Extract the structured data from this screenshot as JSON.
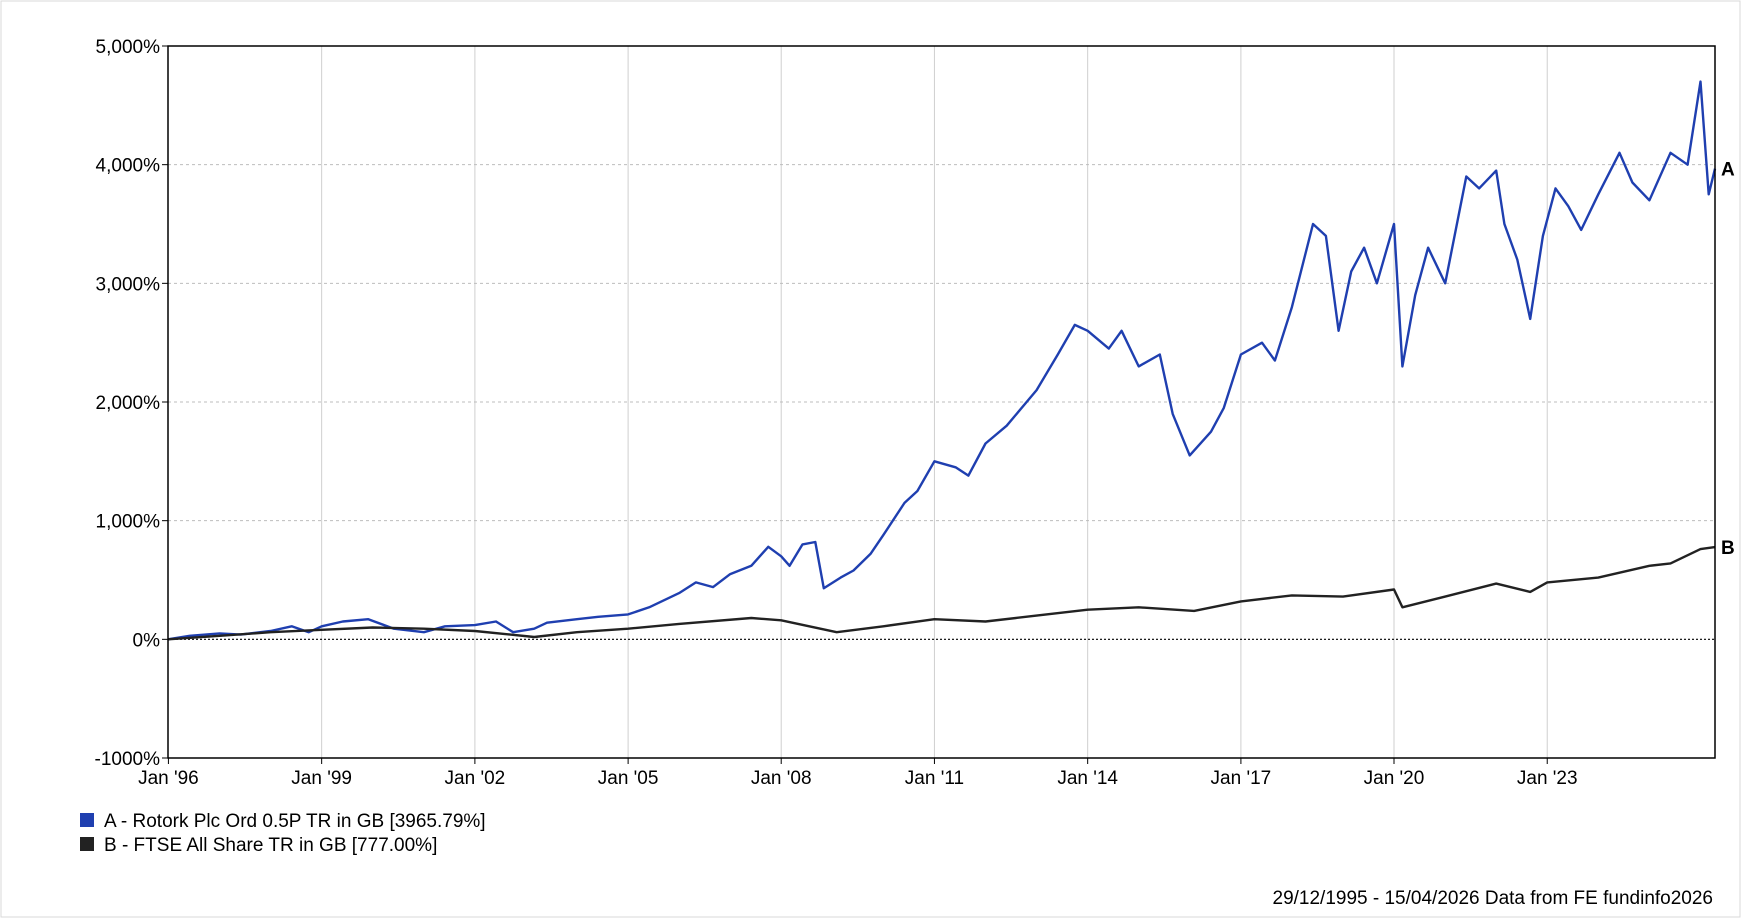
{
  "chart_data": {
    "type": "line",
    "x_range": [
      "1995-12-29",
      "2026-04-15"
    ],
    "ylim": [
      -1000,
      5000
    ],
    "yticks": [
      5000,
      4000,
      3000,
      2000,
      1000,
      0,
      -1000
    ],
    "ytick_labels": [
      "5,000%",
      "4,000%",
      "3,000%",
      "2,000%",
      "1,000%",
      "0%",
      "-1000%"
    ],
    "xticks": [
      "1996-01-01",
      "1999-01-01",
      "2002-01-01",
      "2005-01-01",
      "2008-01-01",
      "2011-01-01",
      "2014-01-01",
      "2017-01-01",
      "2020-01-01",
      "2023-01-01"
    ],
    "xtick_labels": [
      "Jan '96",
      "Jan '99",
      "Jan '02",
      "Jan '05",
      "Jan '08",
      "Jan '11",
      "Jan '14",
      "Jan '17",
      "Jan '20",
      "Jan '23"
    ],
    "grid": true,
    "series": [
      {
        "name": "A - Rotork Plc Ord 0.5P TR in GB [3965.79%]",
        "end_label": "A",
        "color": "#1f3fb0",
        "points": [
          [
            "1995-12-29",
            0
          ],
          [
            "1996-06-01",
            30
          ],
          [
            "1997-01-01",
            50
          ],
          [
            "1997-06-01",
            40
          ],
          [
            "1998-01-01",
            70
          ],
          [
            "1998-06-01",
            110
          ],
          [
            "1998-10-01",
            60
          ],
          [
            "1999-01-01",
            110
          ],
          [
            "1999-06-01",
            150
          ],
          [
            "1999-12-01",
            170
          ],
          [
            "2000-06-01",
            90
          ],
          [
            "2001-01-01",
            60
          ],
          [
            "2001-06-01",
            110
          ],
          [
            "2002-01-01",
            120
          ],
          [
            "2002-06-01",
            150
          ],
          [
            "2002-10-01",
            60
          ],
          [
            "2003-03-01",
            90
          ],
          [
            "2003-06-01",
            140
          ],
          [
            "2004-01-01",
            170
          ],
          [
            "2004-06-01",
            190
          ],
          [
            "2005-01-01",
            210
          ],
          [
            "2005-06-01",
            270
          ],
          [
            "2006-01-01",
            390
          ],
          [
            "2006-05-01",
            480
          ],
          [
            "2006-09-01",
            440
          ],
          [
            "2007-01-01",
            550
          ],
          [
            "2007-06-01",
            620
          ],
          [
            "2007-10-01",
            780
          ],
          [
            "2008-01-01",
            700
          ],
          [
            "2008-03-01",
            620
          ],
          [
            "2008-06-01",
            800
          ],
          [
            "2008-09-01",
            820
          ],
          [
            "2008-11-01",
            430
          ],
          [
            "2009-03-01",
            520
          ],
          [
            "2009-06-01",
            580
          ],
          [
            "2009-10-01",
            720
          ],
          [
            "2010-01-01",
            880
          ],
          [
            "2010-06-01",
            1150
          ],
          [
            "2010-09-01",
            1250
          ],
          [
            "2011-01-01",
            1500
          ],
          [
            "2011-06-01",
            1450
          ],
          [
            "2011-09-01",
            1380
          ],
          [
            "2012-01-01",
            1650
          ],
          [
            "2012-06-01",
            1800
          ],
          [
            "2013-01-01",
            2100
          ],
          [
            "2013-06-01",
            2400
          ],
          [
            "2013-10-01",
            2650
          ],
          [
            "2014-01-01",
            2600
          ],
          [
            "2014-06-01",
            2450
          ],
          [
            "2014-09-01",
            2600
          ],
          [
            "2015-01-01",
            2300
          ],
          [
            "2015-06-01",
            2400
          ],
          [
            "2015-09-01",
            1900
          ],
          [
            "2016-01-01",
            1550
          ],
          [
            "2016-06-01",
            1750
          ],
          [
            "2016-09-01",
            1950
          ],
          [
            "2017-01-01",
            2400
          ],
          [
            "2017-06-01",
            2500
          ],
          [
            "2017-09-01",
            2350
          ],
          [
            "2018-01-01",
            2800
          ],
          [
            "2018-06-01",
            3500
          ],
          [
            "2018-09-01",
            3400
          ],
          [
            "2018-12-01",
            2600
          ],
          [
            "2019-03-01",
            3100
          ],
          [
            "2019-06-01",
            3300
          ],
          [
            "2019-09-01",
            3000
          ],
          [
            "2020-01-01",
            3500
          ],
          [
            "2020-03-01",
            2300
          ],
          [
            "2020-06-01",
            2900
          ],
          [
            "2020-09-01",
            3300
          ],
          [
            "2021-01-01",
            3000
          ],
          [
            "2021-06-01",
            3900
          ],
          [
            "2021-09-01",
            3800
          ],
          [
            "2022-01-01",
            3950
          ],
          [
            "2022-03-01",
            3500
          ],
          [
            "2022-06-01",
            3200
          ],
          [
            "2022-09-01",
            2700
          ],
          [
            "2022-12-01",
            3400
          ],
          [
            "2023-03-01",
            3800
          ],
          [
            "2023-06-01",
            3650
          ],
          [
            "2023-09-01",
            3450
          ],
          [
            "2024-01-01",
            3750
          ],
          [
            "2024-06-01",
            4100
          ],
          [
            "2024-09-01",
            3850
          ],
          [
            "2025-01-01",
            3700
          ],
          [
            "2025-06-01",
            4100
          ],
          [
            "2025-10-01",
            4000
          ],
          [
            "2026-01-01",
            4700
          ],
          [
            "2026-03-01",
            3750
          ],
          [
            "2026-04-15",
            3966
          ]
        ]
      },
      {
        "name": "B - FTSE All Share TR in GB [777.00%]",
        "end_label": "B",
        "color": "#222222",
        "points": [
          [
            "1995-12-29",
            0
          ],
          [
            "1997-01-01",
            30
          ],
          [
            "1998-01-01",
            60
          ],
          [
            "1999-01-01",
            80
          ],
          [
            "2000-01-01",
            100
          ],
          [
            "2001-01-01",
            90
          ],
          [
            "2002-01-01",
            70
          ],
          [
            "2003-03-01",
            20
          ],
          [
            "2004-01-01",
            60
          ],
          [
            "2005-01-01",
            90
          ],
          [
            "2006-01-01",
            130
          ],
          [
            "2007-06-01",
            180
          ],
          [
            "2008-01-01",
            160
          ],
          [
            "2009-02-01",
            60
          ],
          [
            "2010-01-01",
            110
          ],
          [
            "2011-01-01",
            170
          ],
          [
            "2012-01-01",
            150
          ],
          [
            "2013-01-01",
            200
          ],
          [
            "2014-01-01",
            250
          ],
          [
            "2015-01-01",
            270
          ],
          [
            "2016-02-01",
            240
          ],
          [
            "2017-01-01",
            320
          ],
          [
            "2018-01-01",
            370
          ],
          [
            "2019-01-01",
            360
          ],
          [
            "2020-01-01",
            420
          ],
          [
            "2020-03-01",
            270
          ],
          [
            "2021-01-01",
            360
          ],
          [
            "2022-01-01",
            470
          ],
          [
            "2022-09-01",
            400
          ],
          [
            "2023-01-01",
            480
          ],
          [
            "2024-01-01",
            520
          ],
          [
            "2025-01-01",
            620
          ],
          [
            "2025-06-01",
            640
          ],
          [
            "2026-01-01",
            760
          ],
          [
            "2026-04-15",
            777
          ]
        ]
      }
    ],
    "legend": [
      "A - Rotork Plc Ord 0.5P TR in GB [3965.79%]",
      "B - FTSE All Share TR in GB [777.00%]"
    ],
    "legend_position": "bottom-left",
    "footer": "29/12/1995 - 15/04/2026 Data from FE fundinfo2026"
  }
}
